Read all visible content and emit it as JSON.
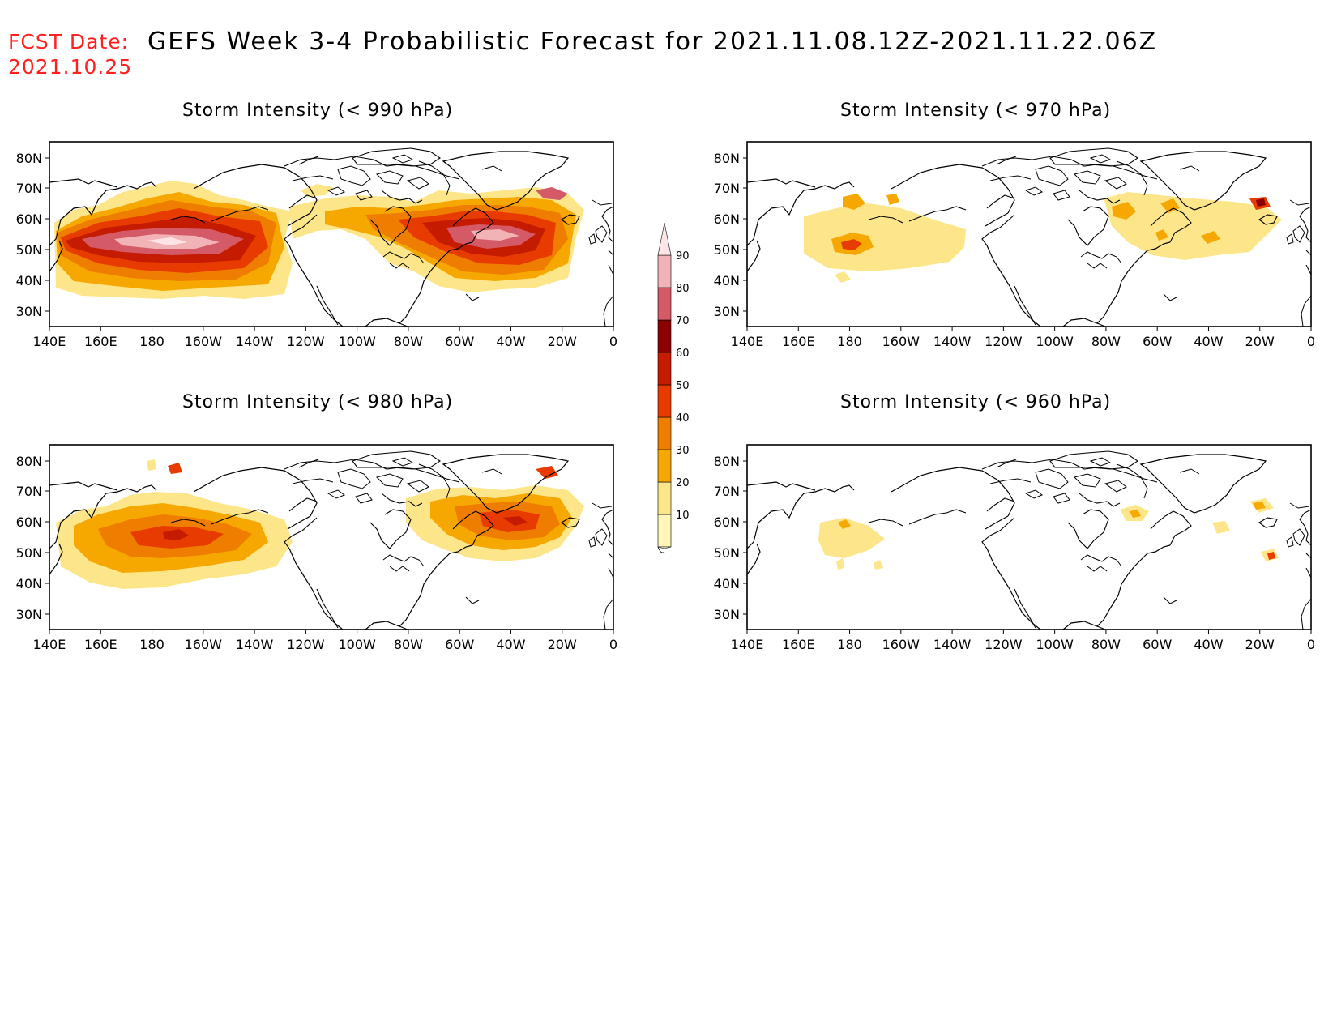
{
  "header": {
    "fcst_label": "FCST Date:",
    "fcst_date": "2021.10.25",
    "title": "GEFS Week 3-4 Probabilistic Forecast for 2021.11.08.12Z-2021.11.22.06Z"
  },
  "panels": [
    {
      "id": "p990",
      "title": "Storm Intensity (< 990 hPa)",
      "max_level": 90
    },
    {
      "id": "p970",
      "title": "Storm Intensity (< 970 hPa)",
      "max_level": 70
    },
    {
      "id": "p980",
      "title": "Storm Intensity (< 980 hPa)",
      "max_level": 70
    },
    {
      "id": "p960",
      "title": "Storm Intensity (< 960 hPa)",
      "max_level": 50
    }
  ],
  "axes": {
    "lon_labels": [
      "140E",
      "160E",
      "180",
      "160W",
      "140W",
      "120W",
      "100W",
      "80W",
      "60W",
      "40W",
      "20W",
      "0"
    ],
    "lat_labels": [
      "80N",
      "70N",
      "60N",
      "50N",
      "40N",
      "30N"
    ]
  },
  "colorbar": {
    "levels": [
      "90",
      "80",
      "70",
      "60",
      "50",
      "40",
      "30",
      "20",
      "10"
    ],
    "colors": {
      "c10": "#fff6b8",
      "c20": "#fde68a",
      "c30": "#f6a800",
      "c40": "#ef7d00",
      "c50": "#e83b00",
      "c60": "#c51b00",
      "c70": "#8c0000",
      "c80": "#d35a66",
      "c90": "#f2b3b6",
      "c100": "#fde5e7"
    }
  }
}
